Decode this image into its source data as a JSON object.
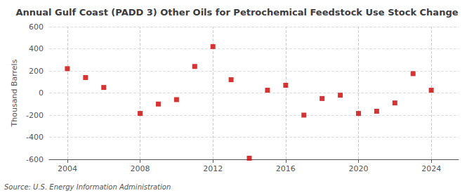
{
  "chart_data": {
    "type": "scatter",
    "title": "Annual Gulf Coast (PADD 3) Other Oils for Petrochemical Feedstock Use Stock Change",
    "ylabel": "Thousand Barrels",
    "annotations": [
      "Source: U.S. Energy Information Administration"
    ],
    "x": [
      2004,
      2005,
      2006,
      2008,
      2009,
      2010,
      2011,
      2012,
      2013,
      2014,
      2015,
      2016,
      2017,
      2018,
      2019,
      2020,
      2021,
      2022,
      2023,
      2024
    ],
    "values": [
      220,
      140,
      50,
      -185,
      -100,
      -60,
      240,
      420,
      120,
      -590,
      25,
      70,
      -200,
      -50,
      -20,
      -185,
      -165,
      -90,
      175,
      25
    ],
    "color": "#cc0000",
    "marker": "square",
    "xlim": [
      2003.0,
      2025.5
    ],
    "ylim": [
      -600,
      600
    ],
    "xticks": [
      2004,
      2008,
      2012,
      2016,
      2020,
      2024
    ],
    "yticks": [
      -600,
      -400,
      -200,
      0,
      200,
      400,
      600
    ],
    "grid": true
  }
}
